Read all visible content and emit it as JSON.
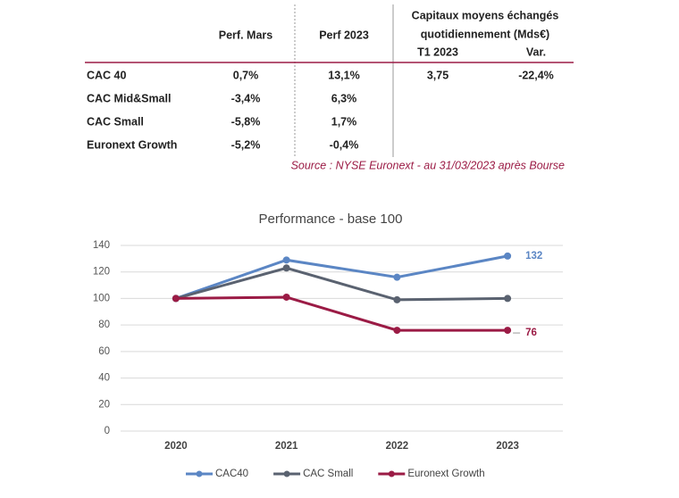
{
  "table": {
    "headers": [
      "Perf. Mars",
      "Perf 2023"
    ],
    "group_header": [
      "Capitaux moyens échangés",
      "quotidiennement (Mds€)"
    ],
    "subheaders": [
      "T1 2023",
      "Var."
    ],
    "rows": [
      [
        "CAC 40",
        "0,7%",
        "13,1%",
        "3,75",
        "-22,4%"
      ],
      [
        "CAC Mid&Small",
        "-3,4%",
        "6,3%"
      ],
      [
        "CAC Small",
        "-5,8%",
        "1,7%"
      ],
      [
        "Euronext Growth",
        "-5,2%",
        "-0,4%"
      ]
    ]
  },
  "source": "Source : NYSE Euronext - au 31/03/2023 après Bourse",
  "chart_data": {
    "type": "line",
    "title": "Performance - base 100",
    "categories": [
      "2020",
      "2021",
      "2022",
      "2023"
    ],
    "series": [
      {
        "name": "CAC40",
        "color": "#5b86c4",
        "values": [
          100,
          129,
          116,
          132
        ],
        "label_last": true
      },
      {
        "name": "CAC Small",
        "color": "#5a6270",
        "values": [
          100,
          123,
          99,
          100
        ],
        "label_last": false
      },
      {
        "name": "Euronext Growth",
        "color": "#9b1b45",
        "values": [
          100,
          101,
          76,
          76
        ],
        "label_last": true
      }
    ],
    "ylim": [
      0,
      140
    ],
    "yticks": [
      0,
      20,
      40,
      60,
      80,
      100,
      120,
      140
    ],
    "grid": true,
    "legend": "bottom"
  }
}
